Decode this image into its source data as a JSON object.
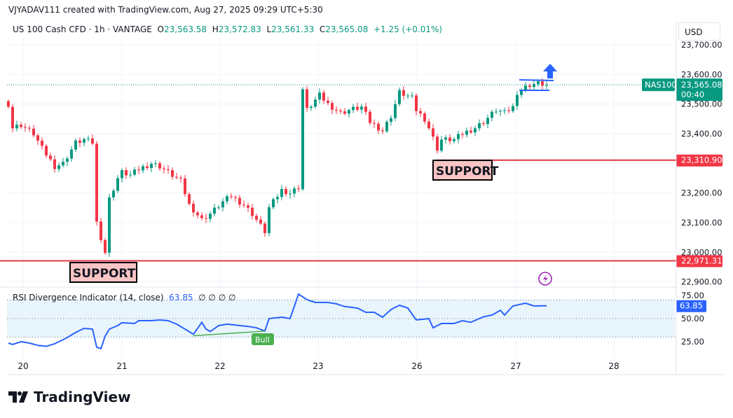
{
  "credit": "VJYADAV111 created with TradingView.com, Aug 27, 2025 09:29 UTC+5:30",
  "legend": {
    "symbol": "US 100 Cash CFD · 1h · VANTAGE",
    "o_label": "O",
    "o": "23,563.58",
    "h_label": "H",
    "h": "23,572.83",
    "l_label": "L",
    "l": "23,561.33",
    "c_label": "C",
    "c": "23,565.08",
    "change": "+1.25 (+0.01%)"
  },
  "currency": "USD",
  "price_axis": [
    "23,700.00",
    "23,600.00",
    "23,500.00",
    "23,400.00",
    "23,200.00",
    "23,100.00",
    "23,000.00",
    "22,900.00"
  ],
  "price_axis_values": [
    23700,
    23600,
    23500,
    23400,
    23200,
    23100,
    23000,
    22900
  ],
  "last_price": {
    "symbol": "NAS100",
    "price": "23,565.08",
    "countdown": "00:40",
    "value": 23565.08
  },
  "support_levels": [
    {
      "label": "SUPPORT",
      "price": "22,971.31",
      "value": 22971.31
    },
    {
      "label": "SUPPORT",
      "price": "23,310.90",
      "value": 23310.9
    }
  ],
  "time_axis": [
    "20",
    "21",
    "22",
    "23",
    "26",
    "27",
    "28"
  ],
  "rsi": {
    "title": "RSI Divergence Indicator (14, close)",
    "value": "63.85",
    "extras": "∅  ∅  ∅  ∅",
    "axis": [
      "75.00",
      "50.00",
      "25.00"
    ],
    "axis_values": [
      75,
      50,
      25
    ],
    "bull_label": "Bull",
    "last": 63.85
  },
  "colors": {
    "up": "#089981",
    "down": "#f23645",
    "rsi": "#2962ff",
    "support": "#e03a45",
    "support_box": "#f8c4c4",
    "drawing": "#2962ff",
    "bull": "#4caf50"
  },
  "chart_data": {
    "type": "candlestick",
    "timeframe": "1h",
    "closes_keypoints": [
      [
        0,
        23500
      ],
      [
        1,
        23420
      ],
      [
        3,
        23430
      ],
      [
        6,
        23400
      ],
      [
        8,
        23350
      ],
      [
        11,
        23290
      ],
      [
        13,
        23300
      ],
      [
        16,
        23370
      ],
      [
        18,
        23380
      ],
      [
        20,
        23370
      ],
      [
        21,
        23100
      ],
      [
        23,
        23000
      ],
      [
        24,
        23180
      ],
      [
        26,
        23250
      ],
      [
        27,
        23270
      ],
      [
        29,
        23260
      ],
      [
        31,
        23280
      ],
      [
        34,
        23300
      ],
      [
        36,
        23290
      ],
      [
        39,
        23260
      ],
      [
        41,
        23240
      ],
      [
        43,
        23160
      ],
      [
        46,
        23110
      ],
      [
        48,
        23130
      ],
      [
        51,
        23170
      ],
      [
        53,
        23190
      ],
      [
        56,
        23160
      ],
      [
        58,
        23130
      ],
      [
        61,
        23070
      ],
      [
        62,
        23150
      ],
      [
        65,
        23210
      ],
      [
        67,
        23200
      ],
      [
        69,
        23220
      ],
      [
        70,
        23550
      ],
      [
        71,
        23480
      ],
      [
        74,
        23530
      ],
      [
        76,
        23500
      ],
      [
        79,
        23470
      ],
      [
        81,
        23480
      ],
      [
        84,
        23490
      ],
      [
        86,
        23440
      ],
      [
        89,
        23410
      ],
      [
        91,
        23460
      ],
      [
        93,
        23540
      ],
      [
        96,
        23520
      ],
      [
        97,
        23480
      ],
      [
        99,
        23450
      ],
      [
        100,
        23420
      ],
      [
        102,
        23350
      ],
      [
        103,
        23380
      ],
      [
        106,
        23380
      ],
      [
        108,
        23400
      ],
      [
        111,
        23420
      ],
      [
        113,
        23440
      ],
      [
        116,
        23480
      ],
      [
        118,
        23470
      ],
      [
        120,
        23490
      ],
      [
        121,
        23540
      ],
      [
        124,
        23565
      ],
      [
        126,
        23570
      ],
      [
        128,
        23565
      ]
    ],
    "rsi_keypoints": [
      [
        0,
        23.5
      ],
      [
        1,
        22
      ],
      [
        3,
        25
      ],
      [
        5,
        23.5
      ],
      [
        7,
        21
      ],
      [
        9,
        20
      ],
      [
        11,
        22.7
      ],
      [
        14,
        29.5
      ],
      [
        16,
        35
      ],
      [
        18,
        39.4
      ],
      [
        20,
        38.6
      ],
      [
        21,
        19
      ],
      [
        22,
        17.4
      ],
      [
        23,
        31
      ],
      [
        24,
        38.6
      ],
      [
        26,
        42.4
      ],
      [
        27,
        45.5
      ],
      [
        30,
        44.7
      ],
      [
        31,
        47.7
      ],
      [
        34,
        47.7
      ],
      [
        36,
        48.5
      ],
      [
        38,
        47.7
      ],
      [
        40,
        44
      ],
      [
        42,
        38.6
      ],
      [
        44,
        33
      ],
      [
        46,
        46
      ],
      [
        47,
        38.6
      ],
      [
        48,
        36
      ],
      [
        50,
        42.4
      ],
      [
        52,
        44
      ],
      [
        55,
        42.4
      ],
      [
        57,
        41.5
      ],
      [
        59,
        40
      ],
      [
        61,
        36.5
      ],
      [
        62,
        50
      ],
      [
        65,
        51.5
      ],
      [
        67,
        50
      ],
      [
        69,
        76.5
      ],
      [
        71,
        70.5
      ],
      [
        73,
        67.4
      ],
      [
        76,
        67.4
      ],
      [
        78,
        66
      ],
      [
        80,
        63
      ],
      [
        83,
        61.4
      ],
      [
        85,
        56.8
      ],
      [
        87,
        56.8
      ],
      [
        89,
        51.5
      ],
      [
        91,
        59.8
      ],
      [
        93,
        64.4
      ],
      [
        95,
        61.4
      ],
      [
        97,
        48.5
      ],
      [
        100,
        50
      ],
      [
        101,
        40
      ],
      [
        103,
        44.7
      ],
      [
        106,
        44.7
      ],
      [
        108,
        47.7
      ],
      [
        110,
        46
      ],
      [
        113,
        52
      ],
      [
        115,
        53.8
      ],
      [
        117,
        59
      ],
      [
        118,
        53.8
      ],
      [
        120,
        63.6
      ],
      [
        123,
        66.7
      ],
      [
        125,
        63.6
      ],
      [
        128,
        63.85
      ]
    ],
    "ylim": [
      22870,
      23730
    ],
    "rsi_ylim": [
      10,
      82
    ],
    "rsi_bands": [
      30,
      50,
      70
    ]
  }
}
